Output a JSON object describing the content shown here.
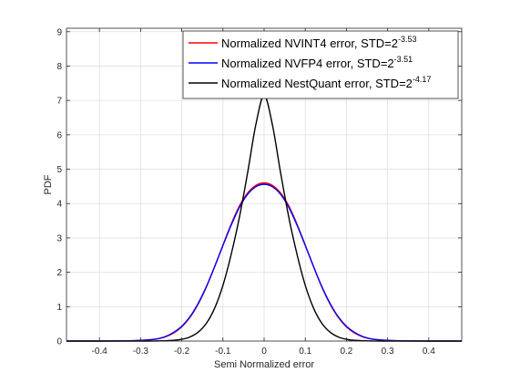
{
  "chart_data": {
    "type": "line",
    "title": "",
    "xlabel": "Semi Normalized error",
    "ylabel": "PDF",
    "xlim": [
      -0.48,
      0.48
    ],
    "ylim": [
      0,
      9.1
    ],
    "xticks": [
      -0.4,
      -0.3,
      -0.2,
      -0.1,
      0,
      0.1,
      0.2,
      0.3,
      0.4
    ],
    "xtick_labels": [
      "-0.4",
      "-0.3",
      "-0.2",
      "-0.1",
      "0",
      "0.1",
      "0.2",
      "0.3",
      "0.4"
    ],
    "yticks": [
      0,
      1,
      2,
      3,
      4,
      5,
      6,
      7,
      8,
      9
    ],
    "ytick_labels": [
      "0",
      "1",
      "2",
      "3",
      "4",
      "5",
      "6",
      "7",
      "8",
      "9"
    ],
    "grid": true,
    "legend_position": "top-right",
    "series": [
      {
        "name": "Normalized NVINT4 error, STD=2^-3.53",
        "label_text": "Normalized NVINT4 error, STD=2",
        "label_exp": "-3.53",
        "color": "#ff0000",
        "x": [
          -0.48,
          -0.4,
          -0.36,
          -0.32,
          -0.28,
          -0.26,
          -0.24,
          -0.22,
          -0.2,
          -0.18,
          -0.16,
          -0.14,
          -0.12,
          -0.1,
          -0.08,
          -0.06,
          -0.04,
          -0.02,
          0,
          0.02,
          0.04,
          0.06,
          0.08,
          0.1,
          0.12,
          0.14,
          0.16,
          0.18,
          0.2,
          0.22,
          0.24,
          0.26,
          0.28,
          0.32,
          0.36,
          0.4,
          0.48
        ],
        "y": [
          0,
          0,
          0.002,
          0.008,
          0.03,
          0.06,
          0.12,
          0.23,
          0.41,
          0.69,
          1.08,
          1.58,
          2.17,
          2.79,
          3.4,
          3.93,
          4.31,
          4.53,
          4.6,
          4.53,
          4.31,
          3.93,
          3.4,
          2.79,
          2.17,
          1.58,
          1.08,
          0.69,
          0.41,
          0.23,
          0.12,
          0.06,
          0.03,
          0.008,
          0.002,
          0,
          0
        ]
      },
      {
        "name": "Normalized NVFP4 error, STD=2^-3.51",
        "label_text": "Normalized NVFP4 error, STD=2",
        "label_exp": "-3.51",
        "color": "#0000ff",
        "x": [
          -0.48,
          -0.4,
          -0.36,
          -0.32,
          -0.28,
          -0.26,
          -0.24,
          -0.22,
          -0.2,
          -0.18,
          -0.16,
          -0.14,
          -0.12,
          -0.1,
          -0.08,
          -0.06,
          -0.04,
          -0.02,
          0,
          0.02,
          0.04,
          0.06,
          0.08,
          0.1,
          0.12,
          0.14,
          0.16,
          0.18,
          0.2,
          0.22,
          0.24,
          0.26,
          0.28,
          0.32,
          0.36,
          0.4,
          0.48
        ],
        "y": [
          0,
          0,
          0.003,
          0.01,
          0.035,
          0.065,
          0.13,
          0.25,
          0.43,
          0.71,
          1.1,
          1.59,
          2.17,
          2.78,
          3.37,
          3.89,
          4.27,
          4.49,
          4.56,
          4.49,
          4.27,
          3.89,
          3.37,
          2.78,
          2.17,
          1.59,
          1.1,
          0.71,
          0.43,
          0.25,
          0.13,
          0.065,
          0.035,
          0.01,
          0.003,
          0,
          0
        ]
      },
      {
        "name": "Normalized NestQuant error, STD=2^-4.17",
        "label_text": "Normalized NestQuant error, STD=2",
        "label_exp": "-4.17",
        "color": "#000000",
        "x": [
          -0.48,
          -0.3,
          -0.26,
          -0.22,
          -0.2,
          -0.18,
          -0.16,
          -0.14,
          -0.12,
          -0.1,
          -0.08,
          -0.06,
          -0.04,
          -0.02,
          0,
          0.02,
          0.04,
          0.06,
          0.08,
          0.1,
          0.12,
          0.14,
          0.16,
          0.18,
          0.2,
          0.22,
          0.26,
          0.3,
          0.48
        ],
        "y": [
          0,
          0,
          0.003,
          0.02,
          0.05,
          0.12,
          0.26,
          0.52,
          0.96,
          1.62,
          2.52,
          3.6,
          4.9,
          6.3,
          7.15,
          6.3,
          4.9,
          3.6,
          2.52,
          1.62,
          0.96,
          0.52,
          0.26,
          0.12,
          0.05,
          0.02,
          0.003,
          0,
          0
        ]
      }
    ]
  }
}
